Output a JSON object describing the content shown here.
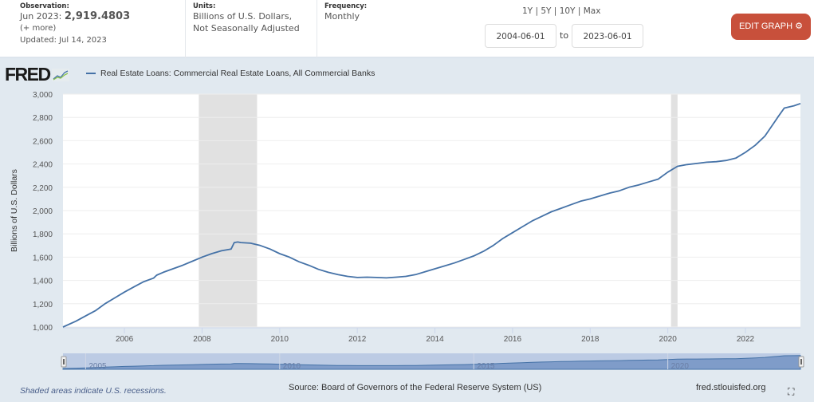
{
  "header": {
    "observation_label": "Observation:",
    "observation_date": "Jun 2023:",
    "observation_value": "2,919.4803",
    "more_link": "(+ more)",
    "updated": "Updated: Jul 14, 2023",
    "units_label": "Units:",
    "units_line1": "Billions of U.S. Dollars,",
    "units_line2": "Not Seasonally Adjusted",
    "frequency_label": "Frequency:",
    "frequency_value": "Monthly",
    "range_links": [
      "1Y",
      "5Y",
      "10Y",
      "Max"
    ],
    "range_sep": "|",
    "start_date": "2004-06-01",
    "to_label": "to",
    "end_date": "2023-06-01",
    "edit_button": "EDIT GRAPH",
    "edit_color": "#c8503b"
  },
  "logo": "FRED",
  "footer": {
    "recession_note": "Shaded areas indicate U.S. recessions.",
    "source": "Source: Board of Governors of the Federal Reserve System (US)",
    "url": "fred.stlouisfed.org"
  },
  "chart_data": {
    "type": "line",
    "title": "",
    "legend": [
      "Real Estate Loans: Commercial Real Estate Loans, All Commercial Banks"
    ],
    "legend_position": "top-left",
    "line_color": "#4572a7",
    "xlabel": "",
    "ylabel": "Billions of U.S. Dollars",
    "xlim": [
      2004.417,
      2023.417
    ],
    "ylim": [
      1000,
      3000
    ],
    "yticks": [
      1000,
      1200,
      1400,
      1600,
      1800,
      2000,
      2200,
      2400,
      2600,
      2800,
      3000
    ],
    "ytick_labels": [
      "1,000",
      "1,200",
      "1,400",
      "1,600",
      "1,800",
      "2,000",
      "2,200",
      "2,400",
      "2,600",
      "2,800",
      "3,000"
    ],
    "xticks": [
      2006,
      2008,
      2010,
      2012,
      2014,
      2016,
      2018,
      2020,
      2022
    ],
    "xtick_labels": [
      "2006",
      "2008",
      "2010",
      "2012",
      "2014",
      "2016",
      "2018",
      "2020",
      "2022"
    ],
    "grid": true,
    "recessions": [
      [
        2007.917,
        2009.417
      ],
      [
        2020.083,
        2020.25
      ]
    ],
    "navigator_labels": [
      "2005",
      "2010",
      "2015",
      "2020"
    ],
    "series": [
      {
        "name": "Real Estate Loans: Commercial Real Estate Loans, All Commercial Banks",
        "x": [
          2004.417,
          2004.75,
          2005.0,
          2005.25,
          2005.5,
          2005.75,
          2006.0,
          2006.25,
          2006.5,
          2006.75,
          2006.83,
          2007.0,
          2007.25,
          2007.5,
          2007.75,
          2008.0,
          2008.25,
          2008.5,
          2008.75,
          2008.83,
          2008.92,
          2009.0,
          2009.25,
          2009.5,
          2009.75,
          2010.0,
          2010.25,
          2010.5,
          2010.75,
          2011.0,
          2011.25,
          2011.5,
          2011.75,
          2012.0,
          2012.25,
          2012.5,
          2012.75,
          2013.0,
          2013.25,
          2013.5,
          2013.75,
          2014.0,
          2014.25,
          2014.5,
          2014.75,
          2015.0,
          2015.25,
          2015.5,
          2015.75,
          2016.0,
          2016.25,
          2016.5,
          2016.75,
          2017.0,
          2017.25,
          2017.5,
          2017.75,
          2018.0,
          2018.25,
          2018.5,
          2018.75,
          2019.0,
          2019.25,
          2019.5,
          2019.75,
          2020.0,
          2020.25,
          2020.5,
          2020.75,
          2021.0,
          2021.25,
          2021.5,
          2021.75,
          2022.0,
          2022.25,
          2022.5,
          2022.75,
          2022.83,
          2023.0,
          2023.25,
          2023.417
        ],
        "values": [
          1000,
          1050,
          1095,
          1140,
          1200,
          1250,
          1300,
          1345,
          1390,
          1420,
          1445,
          1470,
          1500,
          1530,
          1565,
          1600,
          1630,
          1655,
          1670,
          1725,
          1730,
          1725,
          1720,
          1700,
          1670,
          1630,
          1600,
          1560,
          1530,
          1495,
          1470,
          1450,
          1435,
          1425,
          1428,
          1425,
          1422,
          1428,
          1435,
          1450,
          1475,
          1500,
          1525,
          1550,
          1580,
          1610,
          1650,
          1700,
          1760,
          1810,
          1860,
          1910,
          1950,
          1990,
          2020,
          2050,
          2080,
          2100,
          2125,
          2150,
          2170,
          2200,
          2220,
          2245,
          2270,
          2330,
          2380,
          2395,
          2405,
          2415,
          2420,
          2430,
          2450,
          2500,
          2560,
          2640,
          2760,
          2800,
          2880,
          2900,
          2919.48
        ]
      }
    ]
  }
}
